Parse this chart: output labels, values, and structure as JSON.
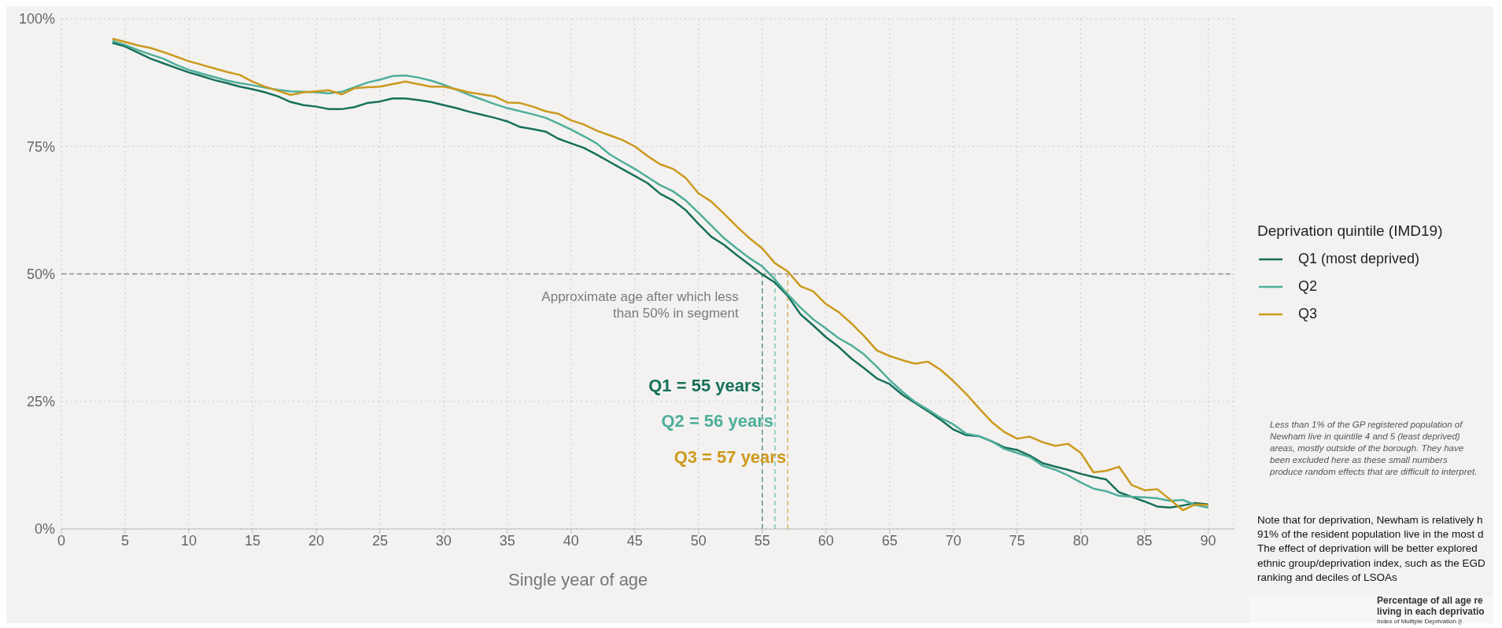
{
  "chart_data": {
    "type": "line",
    "xlabel": "Single year of age",
    "legend_title": "Deprivation quintile (IMD19)",
    "x": [
      4,
      5,
      6,
      7,
      8,
      9,
      10,
      11,
      12,
      13,
      14,
      15,
      16,
      17,
      18,
      19,
      20,
      21,
      22,
      23,
      24,
      25,
      26,
      27,
      28,
      29,
      30,
      31,
      32,
      33,
      34,
      35,
      36,
      37,
      38,
      39,
      40,
      41,
      42,
      43,
      44,
      45,
      46,
      47,
      48,
      49,
      50,
      51,
      52,
      53,
      54,
      55,
      56,
      57,
      58,
      59,
      60,
      61,
      62,
      63,
      64,
      65,
      66,
      67,
      68,
      69,
      70,
      71,
      72,
      73,
      74,
      75,
      76,
      77,
      78,
      79,
      80,
      81,
      82,
      83,
      84,
      85,
      86,
      87,
      88,
      89,
      90
    ],
    "series": [
      {
        "name": "Q1 (most deprived)",
        "color": "#17705a",
        "values": [
          95.3,
          94.6,
          93.4,
          92.2,
          91.3,
          90.4,
          89.5,
          88.8,
          88.0,
          87.4,
          86.7,
          86.2,
          85.6,
          84.8,
          83.7,
          83.1,
          82.8,
          82.3,
          82.3,
          82.7,
          83.5,
          83.8,
          84.4,
          84.4,
          84.1,
          83.7,
          83.1,
          82.5,
          81.8,
          81.2,
          80.6,
          79.9,
          78.8,
          78.4,
          77.9,
          76.5,
          75.6,
          74.7,
          73.4,
          72.0,
          70.6,
          69.2,
          67.8,
          65.7,
          64.4,
          62.5,
          59.8,
          57.3,
          55.7,
          53.7,
          51.8,
          49.9,
          48.3,
          45.7,
          42.1,
          39.9,
          37.6,
          35.7,
          33.4,
          31.5,
          29.5,
          28.4,
          26.3,
          24.7,
          23.1,
          21.4,
          19.5,
          18.4,
          18.2,
          17.2,
          16.0,
          15.5,
          14.4,
          12.9,
          12.2,
          11.6,
          10.8,
          10.2,
          9.7,
          7.2,
          6.3,
          5.4,
          4.4,
          4.2,
          4.6,
          5.1,
          4.8
        ]
      },
      {
        "name": "Q2",
        "color": "#4fae9b",
        "values": [
          95.7,
          94.9,
          93.9,
          93.0,
          92.2,
          91.0,
          90.0,
          89.3,
          88.6,
          87.9,
          87.4,
          87.0,
          86.5,
          86.1,
          85.8,
          85.7,
          85.6,
          85.4,
          85.7,
          86.6,
          87.5,
          88.1,
          88.8,
          88.9,
          88.5,
          87.9,
          87.1,
          86.1,
          85.1,
          84.2,
          83.3,
          82.5,
          81.9,
          81.3,
          80.6,
          79.5,
          78.3,
          77.0,
          75.6,
          73.5,
          72.0,
          70.6,
          69.0,
          67.4,
          66.2,
          64.4,
          62.0,
          59.5,
          57.0,
          55.0,
          53.1,
          51.5,
          48.9,
          46.0,
          43.4,
          41.1,
          39.3,
          37.4,
          36.0,
          34.2,
          31.8,
          29.2,
          26.9,
          24.9,
          23.4,
          21.8,
          20.5,
          18.7,
          18.2,
          17.2,
          15.7,
          14.9,
          14.1,
          12.4,
          11.6,
          10.5,
          9.1,
          7.9,
          7.4,
          6.5,
          6.3,
          6.2,
          6.0,
          5.5,
          5.7,
          4.7,
          4.2
        ]
      },
      {
        "name": "Q3",
        "color": "#cc991c",
        "values": [
          96.1,
          95.5,
          94.8,
          94.3,
          93.5,
          92.6,
          91.7,
          91.0,
          90.3,
          89.6,
          89.0,
          87.7,
          86.7,
          85.9,
          85.1,
          85.6,
          85.8,
          86.0,
          85.2,
          86.4,
          86.6,
          86.7,
          87.2,
          87.7,
          87.2,
          86.7,
          86.7,
          86.2,
          85.6,
          85.2,
          84.8,
          83.6,
          83.5,
          82.8,
          81.9,
          81.4,
          80.1,
          79.3,
          78.1,
          77.2,
          76.3,
          75.0,
          73.1,
          71.5,
          70.6,
          68.8,
          65.8,
          64.2,
          61.8,
          59.3,
          57.0,
          55.0,
          52.1,
          50.5,
          47.6,
          46.6,
          44.1,
          42.5,
          40.3,
          37.8,
          35.0,
          33.9,
          33.1,
          32.4,
          32.8,
          31.2,
          29.0,
          26.5,
          23.7,
          21.0,
          19.0,
          17.7,
          18.1,
          17.0,
          16.3,
          16.7,
          14.9,
          11.1,
          11.4,
          12.2,
          8.6,
          7.6,
          7.8,
          5.8,
          3.7,
          4.8,
          4.7
        ]
      }
    ],
    "xlim": [
      0,
      92
    ],
    "xticks": [
      0,
      5,
      10,
      15,
      20,
      25,
      30,
      35,
      40,
      45,
      50,
      55,
      60,
      65,
      70,
      75,
      80,
      85,
      90
    ],
    "ylim": [
      0,
      100
    ],
    "yticks": [
      {
        "value": 0,
        "label": "0%"
      },
      {
        "value": 25,
        "label": "25%"
      },
      {
        "value": 50,
        "label": "50%"
      },
      {
        "value": 75,
        "label": "75%"
      },
      {
        "value": 100,
        "label": "100%"
      }
    ],
    "ref_lines": [
      {
        "axis": "y",
        "value": 50,
        "label": "Approximate age after which less than 50% in segment",
        "color": "#8c8c8c",
        "line_style": "dashed"
      },
      {
        "axis": "x",
        "value": 55,
        "label": "Q1 = 55 years",
        "color": "#17705a",
        "line_style": "dashed"
      },
      {
        "axis": "x",
        "value": 56,
        "label": "Q2 = 56 years",
        "color": "#4fae9b",
        "line_style": "dashed"
      },
      {
        "axis": "x",
        "value": 57,
        "label": "Q3 = 57 years",
        "color": "#cc991c",
        "line_style": "dashed"
      }
    ],
    "annotations": [
      "Less than 1% of the GP registered population of Newham live in quintile 4 and 5 (least deprived) areas, mostly outside of the borough. They have been excluded here as these small numbers produce random effects that are difficult to interpret.",
      "Note that for deprivation, Newham is relatively h",
      "91% of the resident population live in the most d",
      "The effect of deprivation will be better explored",
      "ethnic group/deprivation index, such as the EGD",
      "ranking and deciles of LSOAs",
      "Percentage of all age re",
      "living in each deprivatio",
      "Index of Multiple Deprivation (I"
    ],
    "grid": true,
    "legend": "right",
    "line_style": "solid",
    "marker": "none"
  }
}
